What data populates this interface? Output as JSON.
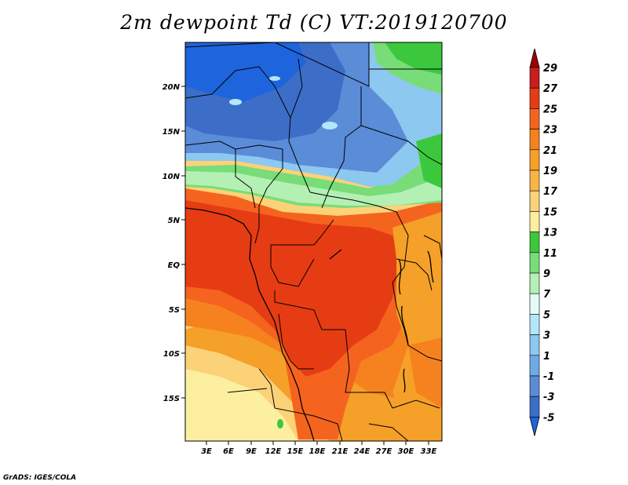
{
  "title": "2m dewpoint Td (C) VT:2019120700",
  "credit": "GrADS: IGES/COLA",
  "x_ticks": [
    "3E",
    "6E",
    "9E",
    "12E",
    "15E",
    "18E",
    "21E",
    "24E",
    "27E",
    "30E",
    "33E"
  ],
  "y_ticks": [
    "20N",
    "15N",
    "10N",
    "5N",
    "EQ",
    "5S",
    "10S",
    "15S"
  ],
  "colorbar": {
    "labels": [
      "29",
      "27",
      "25",
      "23",
      "21",
      "19",
      "17",
      "15",
      "13",
      "11",
      "9",
      "7",
      "5",
      "3",
      "1",
      "-1",
      "-3",
      "-5"
    ],
    "colors": [
      "#a00000",
      "#c81e1e",
      "#e63c14",
      "#f5641e",
      "#f5821e",
      "#f5a028",
      "#fab446",
      "#fcd278",
      "#fcf0a0",
      "#3cc83c",
      "#78dc78",
      "#b4f0b4",
      "#e6fafa",
      "#b4e6fa",
      "#8cc8f0",
      "#6eaae6",
      "#5a8cd8",
      "#3c6ec8",
      "#1e64dc"
    ]
  },
  "legend": {
    "unit_note": "2m dewpoint Td (C)"
  }
}
